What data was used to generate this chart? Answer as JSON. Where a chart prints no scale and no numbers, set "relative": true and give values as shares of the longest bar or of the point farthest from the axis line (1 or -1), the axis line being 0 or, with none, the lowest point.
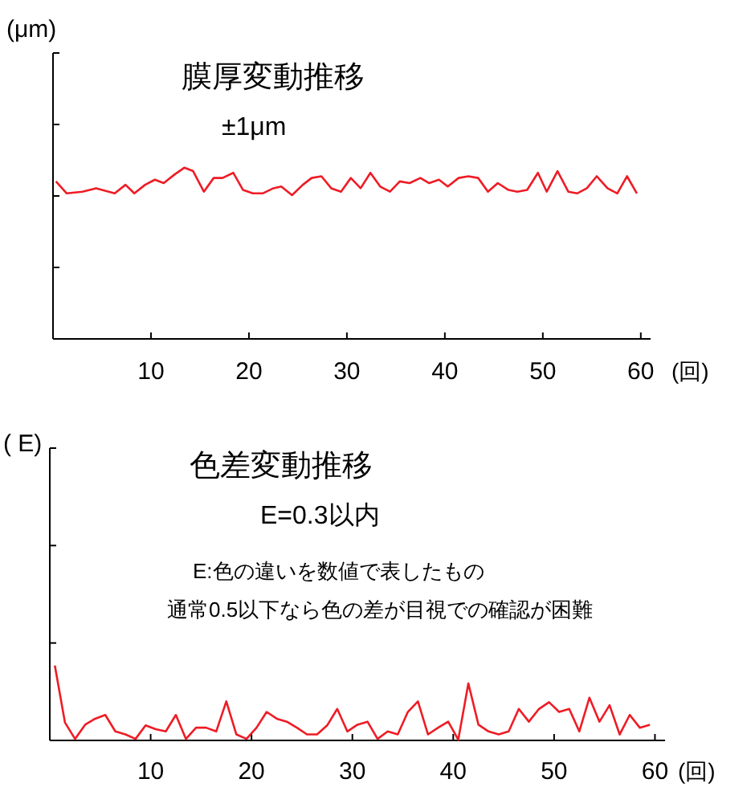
{
  "chart_data": [
    {
      "type": "line",
      "title": "膜厚変動推移",
      "subtitle": "±1μm",
      "ylabel": "(μm)",
      "xlabel": "(回)",
      "relative": true,
      "grid": false,
      "xlim": [
        0,
        61
      ],
      "xticks": [
        10,
        20,
        30,
        40,
        50,
        60
      ],
      "series": [
        {
          "color": "#ee1c25",
          "x": [
            0.3,
            1.4,
            3.0,
            4.4,
            6.3,
            7.4,
            8.3,
            9.4,
            10.4,
            11.3,
            12.4,
            13.4,
            14.3,
            15.4,
            16.4,
            17.3,
            18.4,
            19.4,
            20.4,
            21.4,
            22.5,
            23.3,
            24.4,
            25.5,
            26.4,
            27.4,
            28.4,
            29.4,
            30.4,
            31.4,
            32.4,
            33.4,
            34.4,
            35.4,
            36.4,
            37.5,
            38.4,
            39.4,
            40.3,
            41.4,
            42.4,
            43.4,
            44.4,
            45.4,
            46.5,
            47.4,
            48.4,
            49.5,
            50.4,
            51.5,
            52.6,
            53.5,
            54.5,
            55.5,
            56.6,
            57.6,
            58.6,
            59.6
          ],
          "values": [
            0.92,
            0.85,
            0.86,
            0.88,
            0.85,
            0.9,
            0.85,
            0.9,
            0.93,
            0.91,
            0.96,
            1.0,
            0.98,
            0.86,
            0.94,
            0.94,
            0.97,
            0.87,
            0.85,
            0.85,
            0.88,
            0.89,
            0.84,
            0.9,
            0.94,
            0.95,
            0.88,
            0.86,
            0.94,
            0.88,
            0.97,
            0.89,
            0.86,
            0.92,
            0.91,
            0.94,
            0.91,
            0.93,
            0.89,
            0.94,
            0.95,
            0.94,
            0.86,
            0.91,
            0.87,
            0.86,
            0.87,
            0.97,
            0.86,
            0.98,
            0.86,
            0.85,
            0.88,
            0.95,
            0.88,
            0.85,
            0.95,
            0.85
          ]
        }
      ]
    },
    {
      "type": "line",
      "title": "色差変動推移",
      "subtitle": "E=0.3以内",
      "ylabel": "(  E)",
      "xlabel": "(回)",
      "relative": true,
      "grid": false,
      "annotations": [
        "E:色の違いを数値で表したもの",
        "通常0.5以下なら色の差が目視での確認が困難"
      ],
      "xlim": [
        0,
        61
      ],
      "xticks": [
        10,
        20,
        30,
        40,
        50,
        60
      ],
      "series": [
        {
          "color": "#ee1c25",
          "x": [
            0.5,
            1.5,
            2.5,
            3.5,
            4.5,
            5.5,
            6.5,
            7.5,
            8.5,
            9.5,
            10.5,
            11.5,
            12.5,
            13.5,
            14.5,
            15.5,
            16.5,
            17.5,
            18.5,
            19.5,
            20.5,
            21.5,
            22.5,
            23.5,
            24.5,
            25.5,
            26.5,
            27.5,
            28.5,
            29.5,
            30.5,
            31.5,
            32.5,
            33.5,
            34.5,
            35.5,
            36.5,
            37.5,
            38.5,
            39.5,
            40.5,
            41.5,
            42.5,
            43.5,
            44.5,
            45.5,
            46.5,
            47.5,
            48.5,
            49.5,
            50.5,
            51.5,
            52.5,
            53.5,
            54.5,
            55.5,
            56.5,
            57.5,
            58.5,
            59.5
          ],
          "values": [
            1.0,
            0.24,
            0.02,
            0.21,
            0.29,
            0.34,
            0.12,
            0.08,
            0.02,
            0.2,
            0.15,
            0.12,
            0.34,
            0.02,
            0.17,
            0.17,
            0.12,
            0.52,
            0.08,
            0.02,
            0.17,
            0.38,
            0.29,
            0.25,
            0.17,
            0.08,
            0.08,
            0.2,
            0.42,
            0.12,
            0.21,
            0.25,
            0.02,
            0.12,
            0.08,
            0.38,
            0.52,
            0.08,
            0.17,
            0.25,
            0.01,
            0.76,
            0.21,
            0.12,
            0.08,
            0.12,
            0.42,
            0.25,
            0.42,
            0.51,
            0.38,
            0.42,
            0.12,
            0.57,
            0.25,
            0.47,
            0.08,
            0.34,
            0.17,
            0.21
          ]
        }
      ]
    }
  ]
}
